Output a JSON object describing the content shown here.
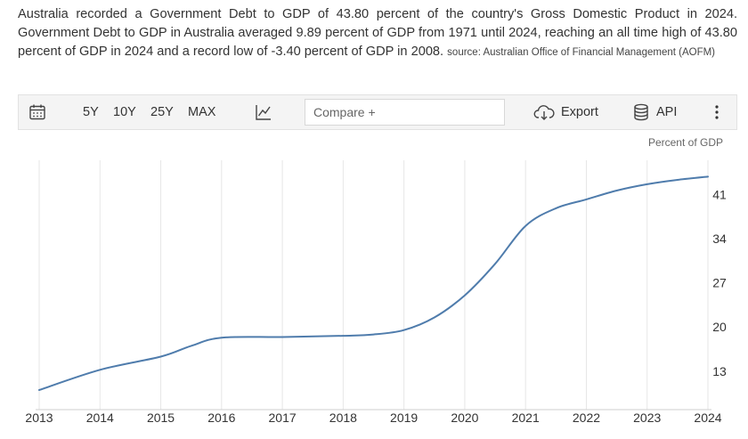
{
  "description": {
    "text": "Australia recorded a Government Debt to GDP of 43.80 percent of the country's Gross Domestic Product in 2024. Government Debt to GDP in Australia averaged 9.89 percent of GDP from 1971 until 2024, reaching an all time high of 43.80 percent of GDP in 2024 and a record low of -3.40 percent of GDP in 2008.",
    "source": "source: Australian Office of Financial Management (AOFM)"
  },
  "toolbar": {
    "ranges": [
      "5Y",
      "10Y",
      "25Y",
      "MAX"
    ],
    "compare_placeholder": "Compare +",
    "export_label": "Export",
    "api_label": "API",
    "icons": [
      "calendar-icon",
      "line-chart-icon",
      "cloud-download-icon",
      "database-icon",
      "more-vertical-icon"
    ]
  },
  "chart_data": {
    "type": "line",
    "unit_label": "Percent of GDP",
    "x": [
      2013,
      2014,
      2015,
      2015.5,
      2016,
      2017,
      2018,
      2018.5,
      2019,
      2019.5,
      2020,
      2020.5,
      2021,
      2021.5,
      2022,
      2022.5,
      2023,
      2023.5,
      2024
    ],
    "series": [
      {
        "values": [
          10.0,
          13.2,
          15.3,
          17.0,
          18.3,
          18.4,
          18.6,
          18.8,
          19.5,
          21.5,
          25.0,
          30.0,
          36.0,
          38.8,
          40.2,
          41.6,
          42.6,
          43.3,
          43.8
        ],
        "color": "#4f7cac"
      }
    ],
    "x_ticks": [
      "2013",
      "2014",
      "2015",
      "2016",
      "2017",
      "2018",
      "2019",
      "2020",
      "2021",
      "2022",
      "2023",
      "2024"
    ],
    "y_ticks": [
      13,
      20,
      27,
      34,
      41
    ],
    "xlim": [
      2013,
      2024
    ],
    "ylim": [
      6.9,
      46.4
    ],
    "grid": "vertical",
    "y_axis_side": "right"
  }
}
